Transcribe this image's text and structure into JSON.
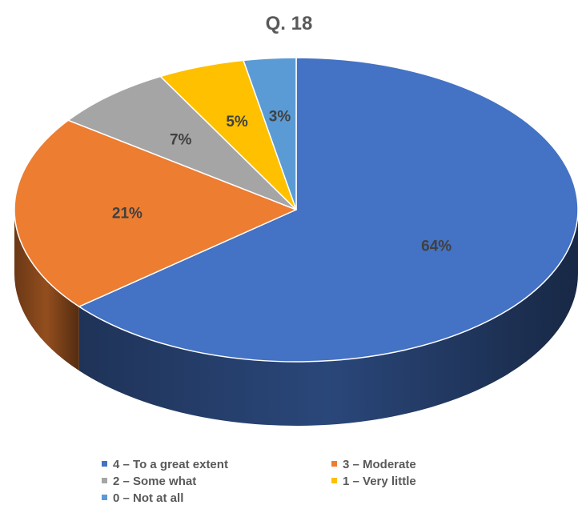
{
  "chart_data": {
    "type": "pie",
    "title": "Q. 18",
    "three_d": true,
    "legend_position": "bottom",
    "slices": [
      {
        "name": "4 – To a great extent",
        "value": 64,
        "label": "64%",
        "color": "#4472C4"
      },
      {
        "name": "3 – Moderate",
        "value": 21,
        "label": "21%",
        "color": "#ED7D31"
      },
      {
        "name": "2 – Some what",
        "value": 7,
        "label": "7%",
        "color": "#A5A5A5"
      },
      {
        "name": "1 – Very little",
        "value": 5,
        "label": "5%",
        "color": "#FFC000"
      },
      {
        "name": "0 – Not at all",
        "value": 3,
        "label": "3%",
        "color": "#5B9BD5"
      }
    ]
  }
}
